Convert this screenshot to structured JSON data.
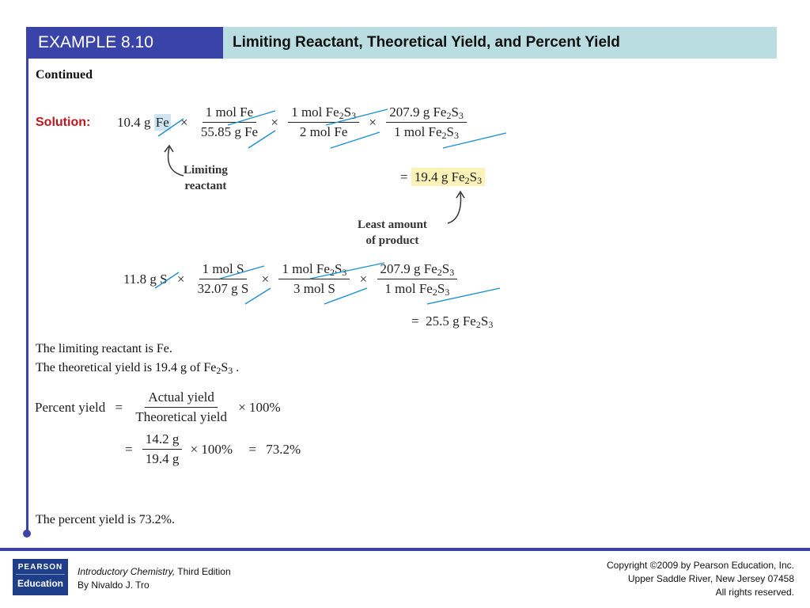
{
  "header": {
    "example_label": "EXAMPLE 8.10",
    "title": "Limiting Reactant, Theoretical Yield, and Percent Yield"
  },
  "continued": "Continued",
  "solution_label": "Solution:",
  "eq1": {
    "start": "10.4 g Fe",
    "f1_num": "1 mol Fe",
    "f1_den": "55.85 g Fe",
    "f2_num": "1 mol Fe2S3",
    "f2_den": "2 mol Fe",
    "f3_num": "207.9 g Fe2S3",
    "f3_den": "1 mol Fe2S3",
    "result": "19.4 g Fe2S3"
  },
  "annotations": {
    "limiting_line1": "Limiting",
    "limiting_line2": "reactant",
    "least_line1": "Least amount",
    "least_line2": "of product"
  },
  "eq2": {
    "start": "11.8 g S",
    "f1_num": "1 mol S",
    "f1_den": "32.07 g S",
    "f2_num": "1 mol Fe2S3",
    "f2_den": "3 mol S",
    "f3_num": "207.9 g Fe2S3",
    "f3_den": "1 mol Fe2S3",
    "result": "25.5 g Fe2S3"
  },
  "statements": {
    "limiting": "The limiting reactant is Fe.",
    "theoretical": "The theoretical yield is 19.4 g of Fe2S3 ."
  },
  "percent": {
    "label": "Percent yield",
    "num": "Actual yield",
    "den": "Theoretical yield",
    "times": "× 100%",
    "num2": "14.2 g",
    "den2": "19.4 g",
    "times2": "× 100%",
    "result": "73.2%"
  },
  "conclusion": "The percent yield is 73.2%.",
  "footer": {
    "logo_top": "PEARSON",
    "logo_bottom": "Education",
    "book_title": "Introductory Chemistry,",
    "book_edition": " Third Edition",
    "book_author": "By Nivaldo J. Tro",
    "copyright_1": "Copyright ©2009 by Pearson Education, Inc.",
    "copyright_2": "Upper Saddle River, New Jersey 07458",
    "copyright_3": "All rights reserved."
  }
}
